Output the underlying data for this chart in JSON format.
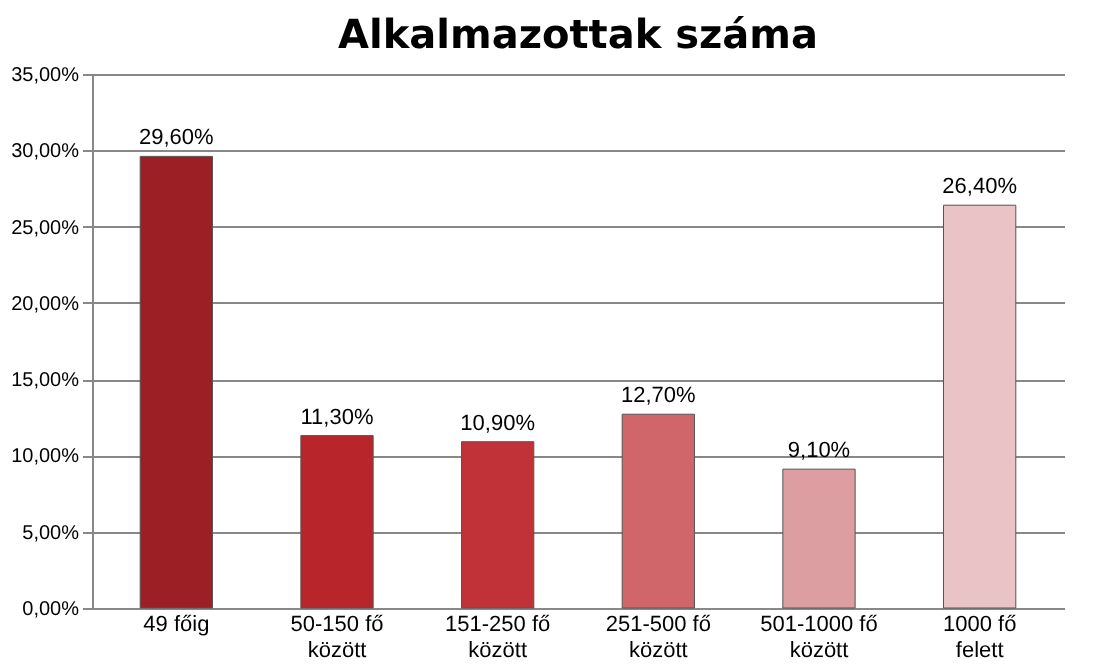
{
  "chart_data": {
    "type": "bar",
    "title": "Alkalmazottak száma",
    "categories": [
      "49 főig",
      "50-150 fő\nközött",
      "151-250 fő\nközött",
      "251-500 fő\nközött",
      "501-1000 fő\nközött",
      "1000 fő\nfelett"
    ],
    "values": [
      29.6,
      11.3,
      10.9,
      12.7,
      9.1,
      26.4
    ],
    "colors": [
      "#9b1f24",
      "#b8262c",
      "#c03238",
      "#d0666a",
      "#dd9ea2",
      "#e9c3c6"
    ],
    "value_labels": [
      "29,60%",
      "11,30%",
      "10,90%",
      "12,70%",
      "9,10%",
      "26,40%"
    ],
    "ylim": [
      0,
      35
    ],
    "yticks": [
      {
        "value": 0,
        "label": "0,00%"
      },
      {
        "value": 5,
        "label": "5,00%"
      },
      {
        "value": 10,
        "label": "10,00%"
      },
      {
        "value": 15,
        "label": "15,00%"
      },
      {
        "value": 20,
        "label": "20,00%"
      },
      {
        "value": 25,
        "label": "25,00%"
      },
      {
        "value": 30,
        "label": "30,00%"
      },
      {
        "value": 35,
        "label": "35,00%"
      }
    ],
    "grid": "y"
  }
}
